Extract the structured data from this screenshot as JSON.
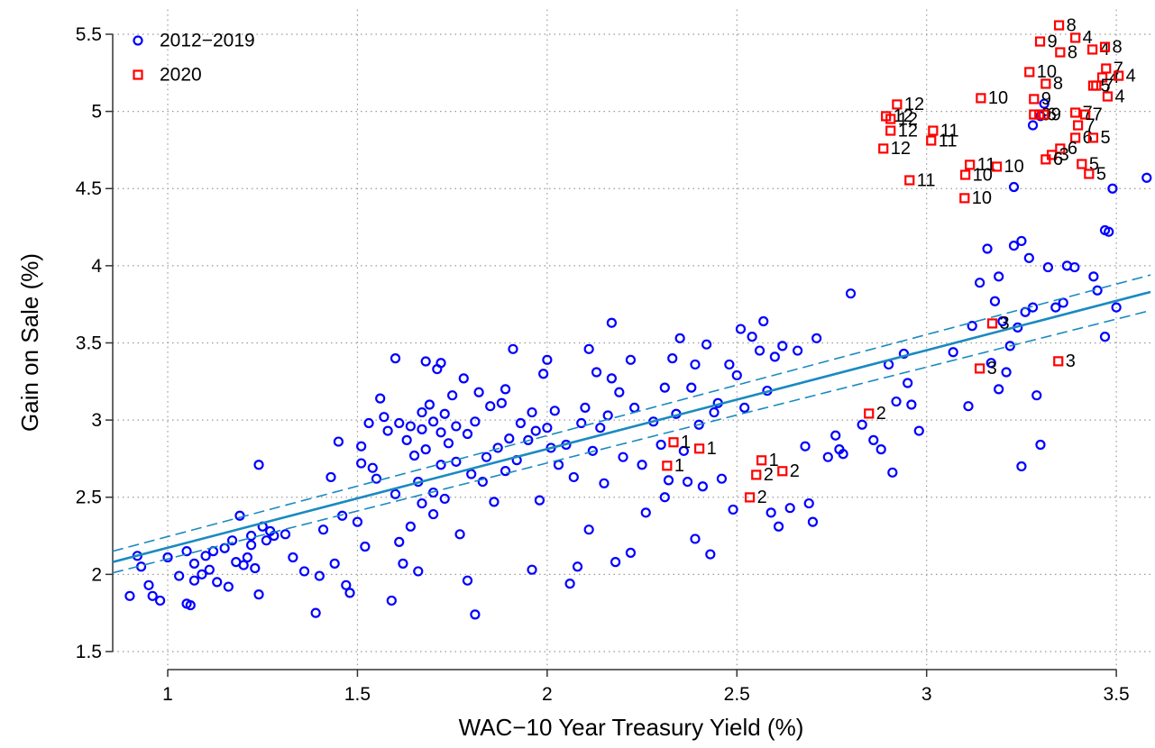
{
  "chart_data": {
    "type": "scatter",
    "x_label": "WAC−10 Year Treasury Yield (%)",
    "y_label": "Gain on Sale (%)",
    "xlim": [
      0.855,
      3.59
    ],
    "ylim": [
      1.383,
      5.66
    ],
    "xticks": [
      1,
      1.5,
      2,
      2.5,
      3,
      3.5
    ],
    "yticks": [
      1.5,
      2,
      2.5,
      3,
      3.5,
      4,
      4.5,
      5,
      5.5
    ],
    "grid": true,
    "legend": "upper-left",
    "fit": {
      "color": "#1a8ac0",
      "x": [
        0.855,
        3.59
      ],
      "y": [
        2.08,
        3.83
      ]
    },
    "ci_upper": {
      "color": "#1a8ac0",
      "x": [
        0.855,
        3.59
      ],
      "y": [
        2.15,
        3.94
      ]
    },
    "ci_lower": {
      "color": "#1a8ac0",
      "x": [
        0.855,
        3.59
      ],
      "y": [
        2.01,
        3.71
      ]
    },
    "series": [
      {
        "name": "2012−2019",
        "color": "#0000ff",
        "marker": "circle",
        "x": [
          0.9,
          0.92,
          0.93,
          0.95,
          0.96,
          0.98,
          1.0,
          1.03,
          1.05,
          1.05,
          1.06,
          1.07,
          1.07,
          1.09,
          1.1,
          1.11,
          1.12,
          1.13,
          1.15,
          1.16,
          1.17,
          1.18,
          1.19,
          1.2,
          1.21,
          1.22,
          1.22,
          1.23,
          1.24,
          1.24,
          1.25,
          1.26,
          1.27,
          1.28,
          1.31,
          1.33,
          1.36,
          1.39,
          1.4,
          1.41,
          1.43,
          1.44,
          1.45,
          1.46,
          1.47,
          1.48,
          1.5,
          1.51,
          1.51,
          1.52,
          1.53,
          1.54,
          1.55,
          1.56,
          1.57,
          1.58,
          1.59,
          1.6,
          1.6,
          1.61,
          1.61,
          1.62,
          1.63,
          1.64,
          1.64,
          1.65,
          1.66,
          1.66,
          1.67,
          1.67,
          1.67,
          1.68,
          1.68,
          1.69,
          1.7,
          1.7,
          1.7,
          1.71,
          1.72,
          1.72,
          1.72,
          1.73,
          1.73,
          1.74,
          1.75,
          1.76,
          1.76,
          1.77,
          1.78,
          1.79,
          1.79,
          1.8,
          1.81,
          1.81,
          1.82,
          1.83,
          1.84,
          1.85,
          1.86,
          1.87,
          1.88,
          1.89,
          1.89,
          1.9,
          1.91,
          1.92,
          1.93,
          1.95,
          1.96,
          1.96,
          1.97,
          1.98,
          1.99,
          2.0,
          2.0,
          2.01,
          2.02,
          2.03,
          2.05,
          2.06,
          2.07,
          2.08,
          2.09,
          2.1,
          2.11,
          2.11,
          2.12,
          2.13,
          2.14,
          2.15,
          2.16,
          2.17,
          2.17,
          2.18,
          2.19,
          2.2,
          2.22,
          2.22,
          2.23,
          2.25,
          2.26,
          2.28,
          2.3,
          2.31,
          2.31,
          2.32,
          2.33,
          2.34,
          2.35,
          2.36,
          2.37,
          2.38,
          2.39,
          2.39,
          2.4,
          2.41,
          2.42,
          2.43,
          2.44,
          2.45,
          2.46,
          2.48,
          2.49,
          2.5,
          2.51,
          2.52,
          2.54,
          2.56,
          2.57,
          2.58,
          2.59,
          2.6,
          2.61,
          2.62,
          2.64,
          2.66,
          2.68,
          2.69,
          2.7,
          2.71,
          2.74,
          2.76,
          2.77,
          2.78,
          2.8,
          2.83,
          2.86,
          2.88,
          2.9,
          2.91,
          2.92,
          2.94,
          2.95,
          2.96,
          2.98,
          3.07,
          3.11,
          3.12,
          3.14,
          3.16,
          3.17,
          3.18,
          3.19,
          3.19,
          3.2,
          3.21,
          3.22,
          3.23,
          3.24,
          3.25,
          3.25,
          3.26,
          3.27,
          3.28,
          3.29,
          3.3,
          3.32,
          3.34,
          3.36,
          3.37,
          3.39,
          3.44,
          3.45,
          3.47,
          3.47,
          3.48,
          3.5,
          3.58,
          3.49,
          3.23,
          3.28,
          3.31,
          3.3
        ],
        "values": [
          1.86,
          2.12,
          2.05,
          1.93,
          1.86,
          1.83,
          2.11,
          1.99,
          2.15,
          1.81,
          1.8,
          2.07,
          1.96,
          2.0,
          2.12,
          2.03,
          2.15,
          1.95,
          2.17,
          1.92,
          2.22,
          2.08,
          2.38,
          2.06,
          2.11,
          2.25,
          2.19,
          2.04,
          2.71,
          1.87,
          2.31,
          2.22,
          2.28,
          2.25,
          2.26,
          2.11,
          2.02,
          1.75,
          1.99,
          2.29,
          2.63,
          2.07,
          2.86,
          2.38,
          1.93,
          1.88,
          2.34,
          2.83,
          2.72,
          2.18,
          2.98,
          2.69,
          2.62,
          3.14,
          3.02,
          2.93,
          1.83,
          3.4,
          2.52,
          2.98,
          2.21,
          2.07,
          2.87,
          2.96,
          2.31,
          2.77,
          2.6,
          2.02,
          3.05,
          2.94,
          2.46,
          3.38,
          2.81,
          3.1,
          2.99,
          2.53,
          2.39,
          3.33,
          3.37,
          2.92,
          2.71,
          3.04,
          2.49,
          2.85,
          3.16,
          2.96,
          2.73,
          2.26,
          3.27,
          2.91,
          1.96,
          2.65,
          2.99,
          1.74,
          3.18,
          2.6,
          2.76,
          3.09,
          2.47,
          2.82,
          3.11,
          2.67,
          3.2,
          2.88,
          3.46,
          2.74,
          2.98,
          2.87,
          3.05,
          2.03,
          2.93,
          2.48,
          3.3,
          2.95,
          3.39,
          2.82,
          3.06,
          2.71,
          2.84,
          1.94,
          2.63,
          2.05,
          2.98,
          3.08,
          3.46,
          2.29,
          2.8,
          3.31,
          2.95,
          2.59,
          3.03,
          3.27,
          3.63,
          2.08,
          3.18,
          2.76,
          3.39,
          2.14,
          3.08,
          2.71,
          2.4,
          2.99,
          2.84,
          2.5,
          3.21,
          2.61,
          3.4,
          3.04,
          3.53,
          2.8,
          2.6,
          3.21,
          3.36,
          2.23,
          2.97,
          2.57,
          3.49,
          2.13,
          3.05,
          3.11,
          2.62,
          3.36,
          2.42,
          3.29,
          3.59,
          3.08,
          3.54,
          3.45,
          3.64,
          3.19,
          2.4,
          3.41,
          2.31,
          3.48,
          2.43,
          3.45,
          2.83,
          2.46,
          2.34,
          3.53,
          2.76,
          2.9,
          2.81,
          2.78,
          3.82,
          2.97,
          2.87,
          2.81,
          3.36,
          2.66,
          3.12,
          3.43,
          3.24,
          3.1,
          2.93,
          3.44,
          3.09,
          3.61,
          3.89,
          4.11,
          3.37,
          3.77,
          3.93,
          3.2,
          3.64,
          3.31,
          3.48,
          4.13,
          3.6,
          4.16,
          2.7,
          3.7,
          4.05,
          3.73,
          3.16,
          2.84,
          3.99,
          3.73,
          3.76,
          4.0,
          3.99,
          3.93,
          3.84,
          3.54,
          4.23,
          4.22,
          3.73,
          4.57,
          4.5,
          4.51,
          4.91,
          5.05,
          4.97
        ]
      },
      {
        "name": "2020",
        "color": "#ff0000",
        "marker": "square",
        "x": [
          3.349,
          3.299,
          3.392,
          3.352,
          3.437,
          3.47,
          3.473,
          3.271,
          3.463,
          3.506,
          3.314,
          3.439,
          3.447,
          3.477,
          3.143,
          3.283,
          2.922,
          3.283,
          3.297,
          3.309,
          3.392,
          3.418,
          2.893,
          2.905,
          3.017,
          2.905,
          3.012,
          3.399,
          3.392,
          3.439,
          3.352,
          2.886,
          3.33,
          3.314,
          3.114,
          3.185,
          3.409,
          3.428,
          3.102,
          2.955,
          3.1,
          3.173,
          3.14,
          3.347,
          2.848,
          2.333,
          2.401,
          2.316,
          2.565,
          2.62,
          2.551,
          2.534
        ],
        "values": [
          5.558,
          5.453,
          5.477,
          5.383,
          5.401,
          5.418,
          5.278,
          5.255,
          5.22,
          5.231,
          5.179,
          5.167,
          5.167,
          5.097,
          5.086,
          5.08,
          5.045,
          4.98,
          4.98,
          4.98,
          4.992,
          4.98,
          4.969,
          4.951,
          4.875,
          4.875,
          4.811,
          4.91,
          4.829,
          4.829,
          4.759,
          4.759,
          4.718,
          4.689,
          4.654,
          4.642,
          4.659,
          4.595,
          4.589,
          4.554,
          4.438,
          3.626,
          3.334,
          3.381,
          3.042,
          2.856,
          2.815,
          2.704,
          2.739,
          2.669,
          2.645,
          2.499
        ],
        "labels": [
          "8",
          "9",
          "4",
          "8",
          "4",
          "8",
          "7",
          "10",
          "4",
          "4",
          "8",
          "5",
          "7",
          "4",
          "10",
          "9",
          "12",
          "9",
          "6",
          "9",
          "7",
          "7",
          "12",
          "12",
          "11",
          "12",
          "11",
          "7",
          "6",
          "5",
          "6",
          "12",
          "3",
          "6",
          "11",
          "10",
          "5",
          "5",
          "10",
          "11",
          "10",
          "3",
          "3",
          "3",
          "2",
          "1",
          "1",
          "1",
          "1",
          "2",
          "2",
          "2"
        ]
      }
    ]
  }
}
